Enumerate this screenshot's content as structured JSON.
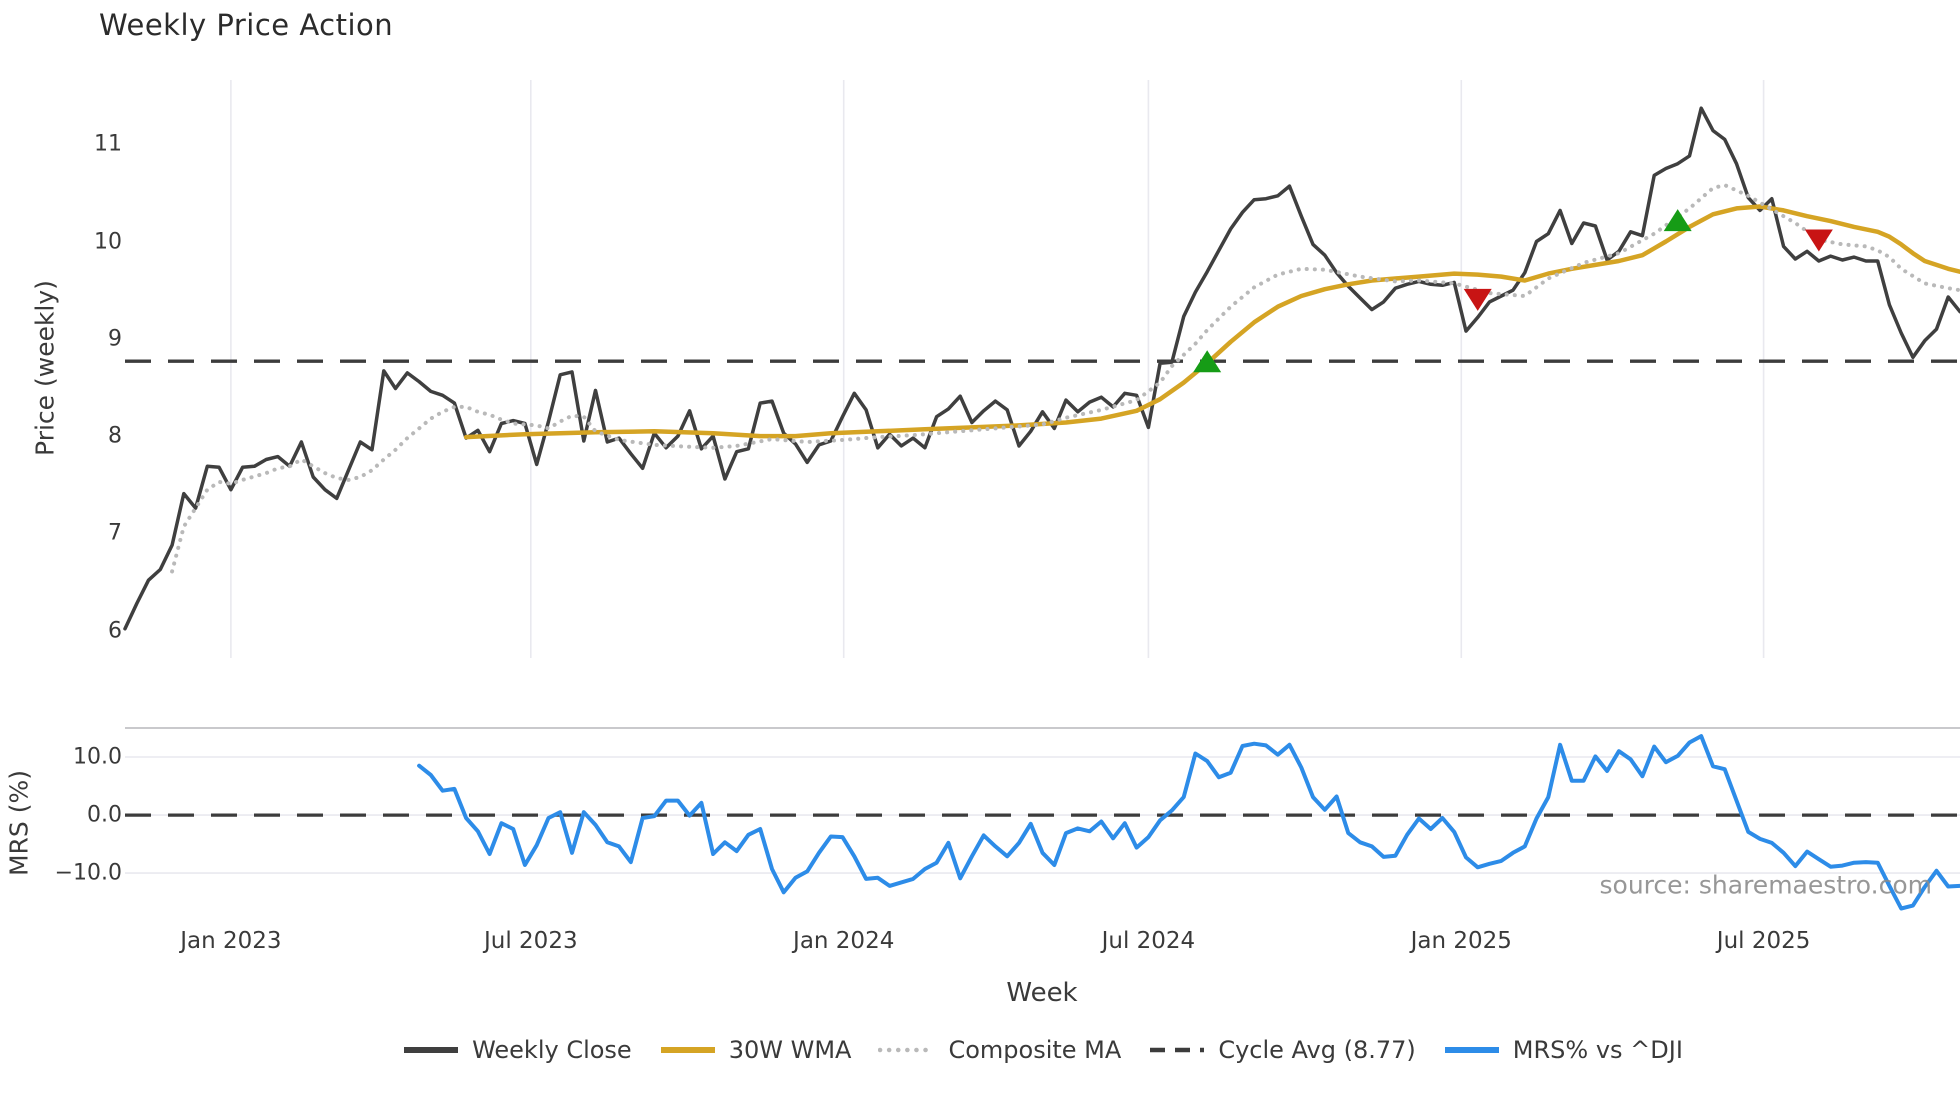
{
  "title": "Weekly Price Action",
  "xlabel": "Week",
  "source": "source: sharemaestro.com",
  "x_tick_labels": [
    "Jan 2023",
    "Jul 2023",
    "Jan 2024",
    "Jul 2024",
    "Jan 2025",
    "Jul 2025"
  ],
  "legend": [
    {
      "label": "Weekly Close",
      "style": "solid",
      "color": "#3f3f3f"
    },
    {
      "label": "30W WMA",
      "style": "solid",
      "color": "#d5a424"
    },
    {
      "label": "Composite MA",
      "style": "dotted",
      "color": "#b9b9b9"
    },
    {
      "label": "Cycle Avg (8.77)",
      "style": "dashed",
      "color": "#3c3c3c"
    },
    {
      "label": "MRS% vs ^DJI",
      "style": "solid",
      "color": "#2d8ce8"
    }
  ],
  "chart_data": {
    "type": "line",
    "title": "Weekly Price Action",
    "xlabel": "Week",
    "x_unit": "week_index",
    "x_range": [
      0,
      156
    ],
    "x_tick_weeks": [
      9.0,
      34.5,
      61.1,
      87.0,
      113.6,
      139.3
    ],
    "x_tick_labels": [
      "Jan 2023",
      "Jul 2023",
      "Jan 2024",
      "Jul 2024",
      "Jan 2025",
      "Jul 2025"
    ],
    "grid": "vertical-on-price-panel, horizontal-on-mrs-panel",
    "legend_position": "bottom-center",
    "panels": [
      {
        "name": "price",
        "ylabel": "Price (weekly)",
        "ylim": [
          5.72,
          11.66
        ],
        "yticks": [
          11,
          10,
          9,
          8,
          7,
          6
        ],
        "cycle_avg": 8.77,
        "series": [
          {
            "name": "Weekly Close",
            "color": "#3f3f3f",
            "style": "solid",
            "width": 3.5,
            "start_week": 0,
            "values": [
              6.02,
              6.28,
              6.52,
              6.63,
              6.88,
              7.41,
              7.26,
              7.69,
              7.68,
              7.45,
              7.68,
              7.69,
              7.76,
              7.79,
              7.69,
              7.94,
              7.58,
              7.45,
              7.36,
              7.65,
              7.94,
              7.86,
              8.67,
              8.49,
              8.65,
              8.56,
              8.46,
              8.42,
              8.34,
              7.98,
              8.06,
              7.84,
              8.13,
              8.16,
              8.13,
              7.71,
              8.15,
              8.63,
              8.66,
              7.95,
              8.47,
              7.94,
              7.98,
              7.82,
              7.67,
              8.03,
              7.88,
              8.0,
              8.26,
              7.87,
              8.0,
              7.56,
              7.84,
              7.87,
              8.34,
              8.36,
              8.03,
              7.92,
              7.73,
              7.91,
              7.95,
              8.2,
              8.44,
              8.27,
              7.88,
              8.02,
              7.9,
              7.98,
              7.88,
              8.2,
              8.28,
              8.41,
              8.14,
              8.26,
              8.36,
              8.27,
              7.9,
              8.05,
              8.25,
              8.08,
              8.37,
              8.25,
              8.35,
              8.4,
              8.3,
              8.44,
              8.42,
              8.09,
              8.75,
              8.76,
              9.23,
              9.48,
              9.69,
              9.91,
              10.13,
              10.3,
              10.43,
              10.44,
              10.47,
              10.57,
              10.26,
              9.97,
              9.86,
              9.68,
              9.54,
              9.42,
              9.3,
              9.38,
              9.52,
              9.56,
              9.59,
              9.56,
              9.55,
              9.58,
              9.08,
              9.22,
              9.38,
              9.44,
              9.5,
              9.68,
              10.0,
              10.08,
              10.32,
              9.98,
              10.19,
              10.16,
              9.81,
              9.9,
              10.1,
              10.06,
              10.68,
              10.75,
              10.8,
              10.88,
              11.37,
              11.14,
              11.05,
              10.8,
              10.45,
              10.32,
              10.44,
              9.95,
              9.82,
              9.9,
              9.8,
              9.85,
              9.81,
              9.84,
              9.8,
              9.8,
              9.35,
              9.06,
              8.81,
              8.98,
              9.1,
              9.43,
              9.28
            ]
          },
          {
            "name": "30W WMA",
            "color": "#d5a424",
            "style": "solid",
            "width": 4.5,
            "points": [
              [
                29,
                7.99
              ],
              [
                34,
                8.02
              ],
              [
                40,
                8.04
              ],
              [
                45,
                8.05
              ],
              [
                50,
                8.03
              ],
              [
                54,
                8.0
              ],
              [
                57,
                8.0
              ],
              [
                60,
                8.03
              ],
              [
                64,
                8.05
              ],
              [
                68,
                8.07
              ],
              [
                72,
                8.09
              ],
              [
                76,
                8.11
              ],
              [
                80,
                8.14
              ],
              [
                83,
                8.18
              ],
              [
                86,
                8.26
              ],
              [
                88,
                8.38
              ],
              [
                90,
                8.55
              ],
              [
                92,
                8.75
              ],
              [
                94,
                8.97
              ],
              [
                96,
                9.17
              ],
              [
                98,
                9.33
              ],
              [
                100,
                9.44
              ],
              [
                102,
                9.51
              ],
              [
                104,
                9.56
              ],
              [
                106,
                9.6
              ],
              [
                108,
                9.62
              ],
              [
                110,
                9.64
              ],
              [
                112,
                9.66
              ],
              [
                113,
                9.67
              ],
              [
                115,
                9.66
              ],
              [
                117,
                9.64
              ],
              [
                119,
                9.6
              ],
              [
                121,
                9.67
              ],
              [
                123,
                9.72
              ],
              [
                125,
                9.76
              ],
              [
                127,
                9.8
              ],
              [
                129,
                9.86
              ],
              [
                131,
                10.0
              ],
              [
                133,
                10.15
              ],
              [
                135,
                10.28
              ],
              [
                137,
                10.34
              ],
              [
                139,
                10.36
              ],
              [
                141,
                10.32
              ],
              [
                143,
                10.26
              ],
              [
                145,
                10.21
              ],
              [
                147,
                10.15
              ],
              [
                149,
                10.1
              ],
              [
                150,
                10.05
              ],
              [
                151,
                9.97
              ],
              [
                152,
                9.88
              ],
              [
                153,
                9.8
              ],
              [
                154,
                9.76
              ],
              [
                155,
                9.72
              ],
              [
                156,
                9.69
              ]
            ]
          },
          {
            "name": "Composite MA",
            "color": "#b9b9b9",
            "style": "dotted",
            "width": 4,
            "points": [
              [
                4,
                6.61
              ],
              [
                5,
                7.07
              ],
              [
                6,
                7.26
              ],
              [
                7,
                7.45
              ],
              [
                8,
                7.53
              ],
              [
                9,
                7.51
              ],
              [
                10,
                7.55
              ],
              [
                12,
                7.62
              ],
              [
                13,
                7.67
              ],
              [
                14,
                7.69
              ],
              [
                15,
                7.76
              ],
              [
                16,
                7.69
              ],
              [
                17,
                7.62
              ],
              [
                18,
                7.57
              ],
              [
                19,
                7.55
              ],
              [
                20,
                7.58
              ],
              [
                21,
                7.65
              ],
              [
                22,
                7.76
              ],
              [
                23,
                7.86
              ],
              [
                24,
                7.98
              ],
              [
                25,
                8.08
              ],
              [
                26,
                8.18
              ],
              [
                27,
                8.25
              ],
              [
                28,
                8.3
              ],
              [
                29,
                8.3
              ],
              [
                30,
                8.25
              ],
              [
                31,
                8.22
              ],
              [
                32,
                8.17
              ],
              [
                33,
                8.13
              ],
              [
                35,
                8.11
              ],
              [
                36,
                8.08
              ],
              [
                37,
                8.15
              ],
              [
                38,
                8.21
              ],
              [
                39,
                8.2
              ],
              [
                40,
                8.05
              ],
              [
                42,
                7.96
              ],
              [
                45,
                7.91
              ],
              [
                48,
                7.89
              ],
              [
                50,
                7.88
              ],
              [
                52,
                7.9
              ],
              [
                55,
                7.97
              ],
              [
                58,
                7.94
              ],
              [
                61,
                7.96
              ],
              [
                64,
                7.99
              ],
              [
                67,
                8.01
              ],
              [
                70,
                8.04
              ],
              [
                73,
                8.07
              ],
              [
                76,
                8.1
              ],
              [
                78,
                8.12
              ],
              [
                80,
                8.19
              ],
              [
                83,
                8.27
              ],
              [
                86,
                8.37
              ],
              [
                88,
                8.55
              ],
              [
                89,
                8.72
              ],
              [
                91,
                8.95
              ],
              [
                92,
                9.09
              ],
              [
                94,
                9.33
              ],
              [
                96,
                9.53
              ],
              [
                98,
                9.66
              ],
              [
                100,
                9.72
              ],
              [
                102,
                9.71
              ],
              [
                105,
                9.64
              ],
              [
                108,
                9.59
              ],
              [
                110,
                9.6
              ],
              [
                113,
                9.57
              ],
              [
                116,
                9.47
              ],
              [
                119,
                9.44
              ],
              [
                121,
                9.62
              ],
              [
                124,
                9.78
              ],
              [
                127,
                9.88
              ],
              [
                130,
                10.08
              ],
              [
                133,
                10.34
              ],
              [
                135,
                10.55
              ],
              [
                136,
                10.58
              ],
              [
                138,
                10.47
              ],
              [
                140,
                10.33
              ],
              [
                142,
                10.19
              ],
              [
                144,
                10.02
              ],
              [
                146,
                9.97
              ],
              [
                148,
                9.95
              ],
              [
                149,
                9.91
              ],
              [
                150,
                9.84
              ],
              [
                151,
                9.72
              ],
              [
                153,
                9.57
              ],
              [
                155,
                9.52
              ],
              [
                156,
                9.5
              ]
            ]
          }
        ],
        "markers": [
          {
            "shape": "triangle-up",
            "color": "#169c16",
            "week": 92,
            "price": 8.77
          },
          {
            "shape": "triangle-down",
            "color": "#c81414",
            "week": 115,
            "price": 9.4
          },
          {
            "shape": "triangle-up",
            "color": "#169c16",
            "week": 132,
            "price": 10.22
          },
          {
            "shape": "triangle-down",
            "color": "#c81414",
            "week": 144,
            "price": 10.01
          }
        ]
      },
      {
        "name": "mrs",
        "ylabel": "MRS (%)",
        "ylim": [
          -16.7,
          15.0
        ],
        "yticks": [
          10.0,
          0.0,
          -10.0
        ],
        "ytick_labels": [
          "10.0",
          "0.0",
          "−10.0"
        ],
        "zero_line_dashed": true,
        "series": [
          {
            "name": "MRS% vs ^DJI",
            "color": "#2d8ce8",
            "style": "solid",
            "width": 4,
            "start_week": 25,
            "values": [
              8.5,
              6.9,
              4.2,
              4.5,
              -0.5,
              -2.8,
              -6.7,
              -1.4,
              -2.4,
              -8.6,
              -5.2,
              -0.5,
              0.5,
              -6.5,
              0.5,
              -1.7,
              -4.7,
              -5.4,
              -8.1,
              -0.5,
              -0.2,
              2.5,
              2.5,
              -0.1,
              2.1,
              -6.7,
              -4.7,
              -6.2,
              -3.4,
              -2.4,
              -9.3,
              -13.3,
              -10.8,
              -9.7,
              -6.5,
              -3.7,
              -3.8,
              -7.1,
              -11.0,
              -10.8,
              -12.2,
              -11.6,
              -11.0,
              -9.3,
              -8.2,
              -4.8,
              -10.9,
              -7.1,
              -3.5,
              -5.4,
              -7.1,
              -4.8,
              -1.5,
              -6.5,
              -8.6,
              -3.1,
              -2.3,
              -2.8,
              -1.1,
              -4.0,
              -1.4,
              -5.6,
              -3.8,
              -0.9,
              0.8,
              3.1,
              10.6,
              9.3,
              6.5,
              7.3,
              11.9,
              12.3,
              12.0,
              10.4,
              12.1,
              8.2,
              3.1,
              0.9,
              3.2,
              -3.1,
              -4.7,
              -5.4,
              -7.2,
              -7.0,
              -3.4,
              -0.6,
              -2.4,
              -0.5,
              -2.9,
              -7.3,
              -9.0,
              -8.4,
              -7.9,
              -6.5,
              -5.4,
              -0.6,
              3.1,
              12.1,
              5.9,
              5.9,
              10.1,
              7.6,
              11.0,
              9.6,
              6.7,
              11.8,
              9.1,
              10.2,
              12.5,
              13.6,
              8.4,
              7.9,
              2.5,
              -2.9,
              -4.1,
              -4.8,
              -6.5,
              -8.8,
              -6.3,
              -7.6,
              -8.9,
              -8.7,
              -8.2,
              -8.1,
              -8.2,
              -12.2,
              -16.1,
              -15.6,
              -12.4,
              -9.6,
              -12.3,
              -12.2
            ]
          }
        ]
      }
    ]
  }
}
